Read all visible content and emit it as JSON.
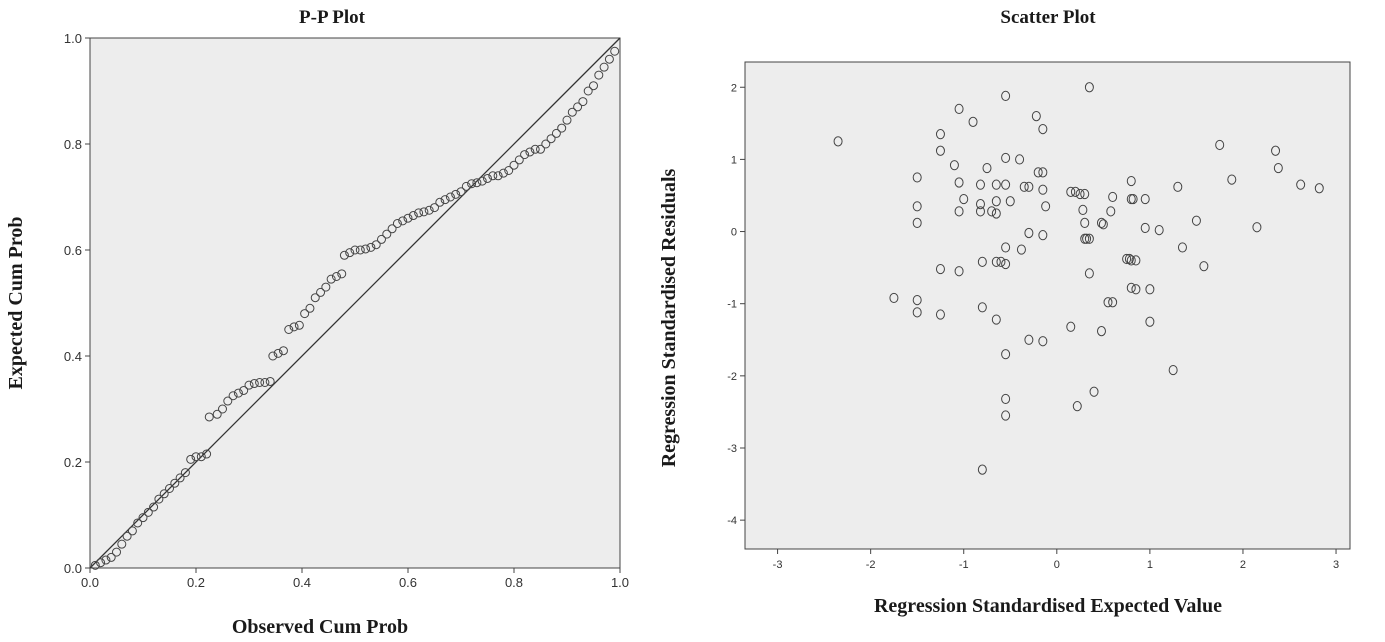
{
  "chart_data": [
    {
      "type": "scatter",
      "title": "P-P Plot",
      "xlabel": "Observed Cum Prob",
      "ylabel": "Expected Cum Prob",
      "xlim": [
        0,
        1
      ],
      "ylim": [
        0,
        1
      ],
      "x_ticks": [
        "0.0",
        "0.2",
        "0.4",
        "0.6",
        "0.8",
        "1.0"
      ],
      "y_ticks": [
        "0.0",
        "0.2",
        "0.4",
        "0.6",
        "0.8",
        "1.0"
      ],
      "grid": false,
      "reference_line": {
        "from": [
          0,
          0
        ],
        "to": [
          1,
          1
        ]
      },
      "background": "#ededed",
      "points": [
        [
          0.01,
          0.005
        ],
        [
          0.02,
          0.01
        ],
        [
          0.03,
          0.015
        ],
        [
          0.04,
          0.02
        ],
        [
          0.05,
          0.03
        ],
        [
          0.06,
          0.045
        ],
        [
          0.07,
          0.06
        ],
        [
          0.08,
          0.07
        ],
        [
          0.09,
          0.085
        ],
        [
          0.1,
          0.095
        ],
        [
          0.11,
          0.105
        ],
        [
          0.12,
          0.115
        ],
        [
          0.13,
          0.13
        ],
        [
          0.14,
          0.14
        ],
        [
          0.15,
          0.15
        ],
        [
          0.16,
          0.16
        ],
        [
          0.17,
          0.17
        ],
        [
          0.18,
          0.18
        ],
        [
          0.19,
          0.205
        ],
        [
          0.2,
          0.21
        ],
        [
          0.21,
          0.21
        ],
        [
          0.22,
          0.215
        ],
        [
          0.225,
          0.285
        ],
        [
          0.24,
          0.29
        ],
        [
          0.25,
          0.3
        ],
        [
          0.26,
          0.315
        ],
        [
          0.27,
          0.325
        ],
        [
          0.28,
          0.33
        ],
        [
          0.29,
          0.335
        ],
        [
          0.3,
          0.345
        ],
        [
          0.31,
          0.348
        ],
        [
          0.32,
          0.35
        ],
        [
          0.33,
          0.35
        ],
        [
          0.34,
          0.352
        ],
        [
          0.345,
          0.4
        ],
        [
          0.355,
          0.405
        ],
        [
          0.365,
          0.41
        ],
        [
          0.375,
          0.45
        ],
        [
          0.385,
          0.455
        ],
        [
          0.395,
          0.458
        ],
        [
          0.405,
          0.48
        ],
        [
          0.415,
          0.49
        ],
        [
          0.425,
          0.51
        ],
        [
          0.435,
          0.52
        ],
        [
          0.445,
          0.53
        ],
        [
          0.455,
          0.545
        ],
        [
          0.465,
          0.55
        ],
        [
          0.475,
          0.555
        ],
        [
          0.48,
          0.59
        ],
        [
          0.49,
          0.595
        ],
        [
          0.5,
          0.6
        ],
        [
          0.51,
          0.6
        ],
        [
          0.52,
          0.602
        ],
        [
          0.53,
          0.605
        ],
        [
          0.54,
          0.61
        ],
        [
          0.55,
          0.62
        ],
        [
          0.56,
          0.63
        ],
        [
          0.57,
          0.64
        ],
        [
          0.58,
          0.65
        ],
        [
          0.59,
          0.655
        ],
        [
          0.6,
          0.66
        ],
        [
          0.61,
          0.665
        ],
        [
          0.62,
          0.67
        ],
        [
          0.63,
          0.672
        ],
        [
          0.64,
          0.675
        ],
        [
          0.65,
          0.68
        ],
        [
          0.66,
          0.69
        ],
        [
          0.67,
          0.695
        ],
        [
          0.68,
          0.7
        ],
        [
          0.69,
          0.705
        ],
        [
          0.7,
          0.71
        ],
        [
          0.71,
          0.72
        ],
        [
          0.72,
          0.725
        ],
        [
          0.73,
          0.727
        ],
        [
          0.74,
          0.73
        ],
        [
          0.75,
          0.735
        ],
        [
          0.76,
          0.74
        ],
        [
          0.77,
          0.74
        ],
        [
          0.78,
          0.745
        ],
        [
          0.79,
          0.75
        ],
        [
          0.8,
          0.76
        ],
        [
          0.81,
          0.77
        ],
        [
          0.82,
          0.78
        ],
        [
          0.83,
          0.785
        ],
        [
          0.84,
          0.79
        ],
        [
          0.85,
          0.79
        ],
        [
          0.86,
          0.8
        ],
        [
          0.87,
          0.81
        ],
        [
          0.88,
          0.82
        ],
        [
          0.89,
          0.83
        ],
        [
          0.9,
          0.845
        ],
        [
          0.91,
          0.86
        ],
        [
          0.92,
          0.87
        ],
        [
          0.93,
          0.88
        ],
        [
          0.94,
          0.9
        ],
        [
          0.95,
          0.91
        ],
        [
          0.96,
          0.93
        ],
        [
          0.97,
          0.945
        ],
        [
          0.98,
          0.96
        ],
        [
          0.99,
          0.975
        ]
      ]
    },
    {
      "type": "scatter",
      "title": "Scatter Plot",
      "xlabel": "Regression Standardised Expected Value",
      "ylabel": "Regression Standardised Residuals",
      "xlim": [
        -3.35,
        3.15
      ],
      "ylim": [
        -4.4,
        2.35
      ],
      "x_ticks": [
        "-3",
        "-2",
        "-1",
        "0",
        "1",
        "2",
        "3"
      ],
      "y_ticks": [
        "2",
        "1",
        "0",
        "-1",
        "-2",
        "-3",
        "-4"
      ],
      "grid": false,
      "background": "#ededed",
      "points": [
        [
          -2.35,
          1.25
        ],
        [
          -1.75,
          -0.92
        ],
        [
          -1.5,
          0.75
        ],
        [
          -1.5,
          0.35
        ],
        [
          -1.5,
          0.12
        ],
        [
          -1.5,
          -0.95
        ],
        [
          -1.5,
          -1.12
        ],
        [
          -1.25,
          1.35
        ],
        [
          -1.25,
          1.12
        ],
        [
          -1.25,
          -0.52
        ],
        [
          -1.25,
          -1.15
        ],
        [
          -1.1,
          0.92
        ],
        [
          -1.05,
          1.7
        ],
        [
          -1.05,
          0.68
        ],
        [
          -1.05,
          0.28
        ],
        [
          -1.05,
          -0.55
        ],
        [
          -1.0,
          0.45
        ],
        [
          -0.9,
          1.52
        ],
        [
          -0.82,
          0.65
        ],
        [
          -0.82,
          0.38
        ],
        [
          -0.82,
          0.28
        ],
        [
          -0.8,
          -0.42
        ],
        [
          -0.8,
          -1.05
        ],
        [
          -0.8,
          -3.3
        ],
        [
          -0.75,
          0.88
        ],
        [
          -0.7,
          0.28
        ],
        [
          -0.65,
          0.65
        ],
        [
          -0.65,
          0.42
        ],
        [
          -0.65,
          0.25
        ],
        [
          -0.65,
          -0.42
        ],
        [
          -0.65,
          -1.22
        ],
        [
          -0.6,
          -0.42
        ],
        [
          -0.55,
          1.88
        ],
        [
          -0.55,
          1.02
        ],
        [
          -0.55,
          0.65
        ],
        [
          -0.55,
          -0.22
        ],
        [
          -0.55,
          -0.45
        ],
        [
          -0.55,
          -1.7
        ],
        [
          -0.55,
          -2.32
        ],
        [
          -0.55,
          -2.55
        ],
        [
          -0.5,
          0.42
        ],
        [
          -0.4,
          1.0
        ],
        [
          -0.38,
          -0.25
        ],
        [
          -0.35,
          0.62
        ],
        [
          -0.3,
          0.62
        ],
        [
          -0.3,
          -0.02
        ],
        [
          -0.3,
          -1.5
        ],
        [
          -0.22,
          1.6
        ],
        [
          -0.2,
          0.82
        ],
        [
          -0.15,
          1.42
        ],
        [
          -0.15,
          0.82
        ],
        [
          -0.15,
          0.58
        ],
        [
          -0.15,
          -0.05
        ],
        [
          -0.15,
          -1.52
        ],
        [
          -0.12,
          0.35
        ],
        [
          0.15,
          0.55
        ],
        [
          0.15,
          -1.32
        ],
        [
          0.2,
          0.55
        ],
        [
          0.22,
          -2.42
        ],
        [
          0.25,
          0.52
        ],
        [
          0.28,
          0.3
        ],
        [
          0.3,
          0.52
        ],
        [
          0.3,
          0.12
        ],
        [
          0.3,
          -0.1
        ],
        [
          0.32,
          -0.1
        ],
        [
          0.35,
          2.0
        ],
        [
          0.35,
          -0.1
        ],
        [
          0.35,
          -0.58
        ],
        [
          0.4,
          -2.22
        ],
        [
          0.48,
          0.12
        ],
        [
          0.48,
          -1.38
        ],
        [
          0.5,
          0.1
        ],
        [
          0.55,
          -0.98
        ],
        [
          0.58,
          0.28
        ],
        [
          0.6,
          0.48
        ],
        [
          0.6,
          -0.98
        ],
        [
          0.75,
          -0.38
        ],
        [
          0.78,
          -0.38
        ],
        [
          0.8,
          0.7
        ],
        [
          0.8,
          0.45
        ],
        [
          0.8,
          -0.4
        ],
        [
          0.8,
          -0.78
        ],
        [
          0.82,
          0.45
        ],
        [
          0.85,
          -0.4
        ],
        [
          0.85,
          -0.8
        ],
        [
          0.95,
          0.45
        ],
        [
          0.95,
          0.05
        ],
        [
          1.0,
          -0.8
        ],
        [
          1.0,
          -1.25
        ],
        [
          1.1,
          0.02
        ],
        [
          1.25,
          -1.92
        ],
        [
          1.3,
          0.62
        ],
        [
          1.35,
          -0.22
        ],
        [
          1.5,
          0.15
        ],
        [
          1.58,
          -0.48
        ],
        [
          1.75,
          1.2
        ],
        [
          1.88,
          0.72
        ],
        [
          2.15,
          0.06
        ],
        [
          2.35,
          1.12
        ],
        [
          2.38,
          0.88
        ],
        [
          2.62,
          0.65
        ],
        [
          2.82,
          0.6
        ]
      ]
    }
  ]
}
